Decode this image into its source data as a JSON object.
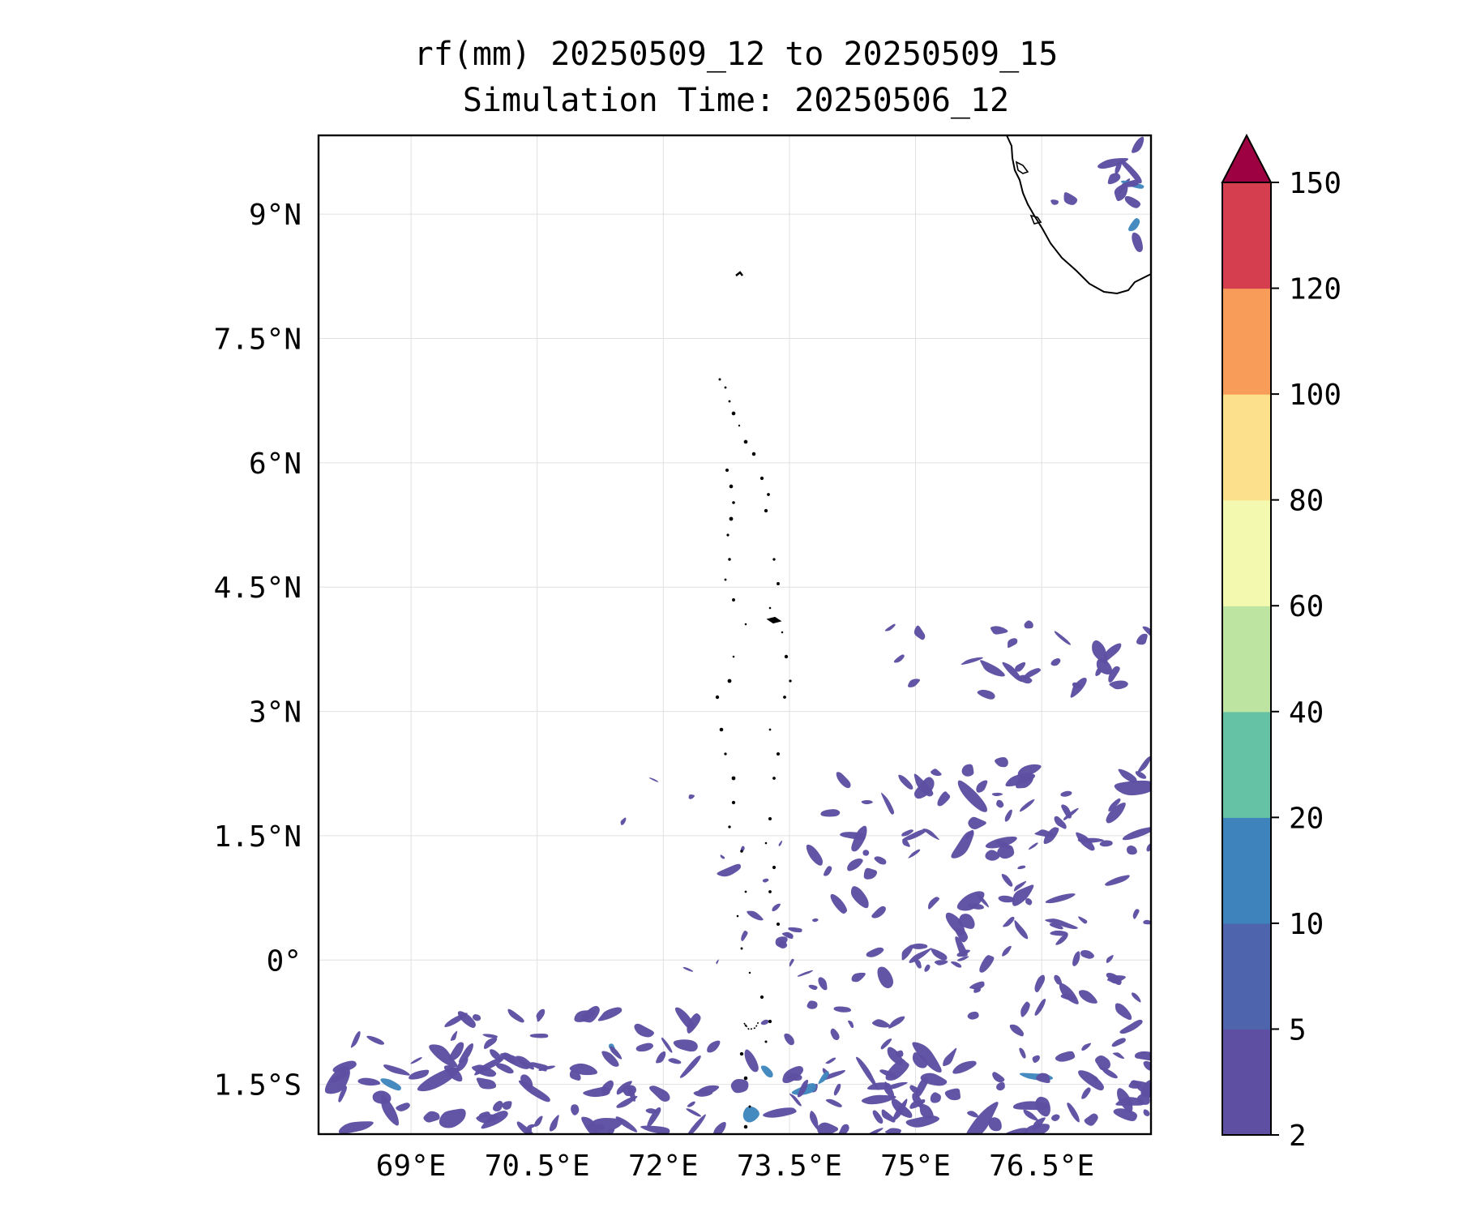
{
  "title": {
    "line1": "rf(mm) 20250509_12 to 20250509_15",
    "line2": "Simulation Time: 20250506_12"
  },
  "map": {
    "lon_range": [
      67.9,
      77.8
    ],
    "lat_range": [
      -2.1,
      9.95
    ],
    "lon_ticks": [
      {
        "value": 69.0,
        "label": "69°E"
      },
      {
        "value": 70.5,
        "label": "70.5°E"
      },
      {
        "value": 72.0,
        "label": "72°E"
      },
      {
        "value": 73.5,
        "label": "73.5°E"
      },
      {
        "value": 75.0,
        "label": "75°E"
      },
      {
        "value": 76.5,
        "label": "76.5°E"
      }
    ],
    "lat_ticks": [
      {
        "value": 9.0,
        "label": "9°N"
      },
      {
        "value": 7.5,
        "label": "7.5°N"
      },
      {
        "value": 6.0,
        "label": "6°N"
      },
      {
        "value": 4.5,
        "label": "4.5°N"
      },
      {
        "value": 3.0,
        "label": "3°N"
      },
      {
        "value": 1.5,
        "label": "1.5°N"
      },
      {
        "value": 0.0,
        "label": "0°"
      },
      {
        "value": -1.5,
        "label": "1.5°S"
      }
    ],
    "gridlines": true,
    "rain_color": "#5e4fa2",
    "rain_color_heavy": "#3f87be",
    "coast_color": "#000000"
  },
  "colorbar": {
    "levels": [
      {
        "label": "2"
      },
      {
        "label": "5"
      },
      {
        "label": "10"
      },
      {
        "label": "20"
      },
      {
        "label": "40"
      },
      {
        "label": "60"
      },
      {
        "label": "80"
      },
      {
        "label": "100"
      },
      {
        "label": "120"
      },
      {
        "label": "150"
      }
    ],
    "colors": [
      "#5e4fa2",
      "#4e64ad",
      "#3e83bb",
      "#66c2a5",
      "#bde4a0",
      "#f3f9ae",
      "#fde08b",
      "#f89d59",
      "#d53e4f"
    ],
    "extend_color": "#9e0142"
  }
}
